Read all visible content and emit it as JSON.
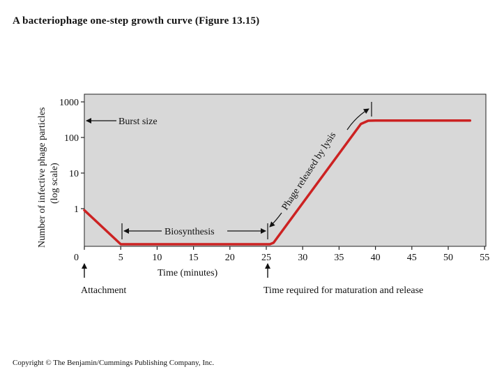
{
  "title": "A bacteriophage one-step growth curve  (Figure 13.15)",
  "copyright": "Copyright © The Benjamin/Cummings Publishing Company, Inc.",
  "chart_data": {
    "type": "line",
    "ylabel_line1": "Number of infective phage particles",
    "ylabel_line2": "(log scale)",
    "xlabel": "Time (minutes)",
    "x_ticks": [
      0,
      5,
      10,
      15,
      20,
      25,
      30,
      35,
      40,
      45,
      50,
      55
    ],
    "y_ticks": [
      1,
      10,
      100,
      1000
    ],
    "y_scale": "log",
    "xlim": [
      0,
      55
    ],
    "ylim": [
      0.08,
      2000
    ],
    "grid": false,
    "plot_background": "#d8d8d8",
    "series": [
      {
        "color": "#cc2222",
        "x": [
          0,
          5,
          25,
          25.5,
          26,
          38,
          39,
          40,
          53
        ],
        "y": [
          0.9,
          0.1,
          0.1,
          0.1,
          0.11,
          240,
          295,
          300,
          300
        ]
      }
    ],
    "annotations": {
      "burst_size": "Burst size",
      "biosynthesis": "Biosynthesis",
      "lysis": "Phage released by lysis",
      "attachment": "Attachment",
      "maturation": "Time required for maturation and release"
    }
  }
}
